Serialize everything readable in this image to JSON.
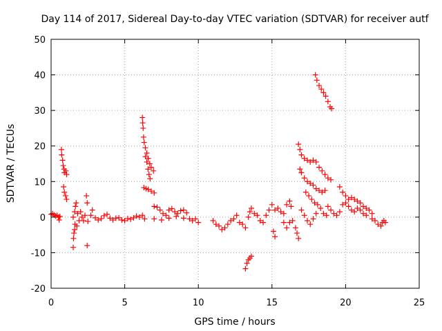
{
  "chart_data": {
    "type": "scatter",
    "title": "Day 114 of 2017, Sidereal Day-to-day VTEC variation (SDTVAR) for receiver autf",
    "xlabel": "GPS time / hours",
    "ylabel": "SDTVAR / TECUs",
    "xlim": [
      0,
      25
    ],
    "ylim": [
      -20,
      50
    ],
    "xticks": [
      0,
      5,
      10,
      15,
      20,
      25
    ],
    "yticks": [
      -20,
      -10,
      0,
      10,
      20,
      30,
      40,
      50
    ],
    "xtick_labels": [
      "0",
      "5",
      "10",
      "15",
      "20",
      "25"
    ],
    "ytick_labels": [
      "-20",
      "-10",
      "0",
      "10",
      "20",
      "30",
      "40",
      "50"
    ],
    "grid": true,
    "marker": "plus",
    "color": "#ff0000",
    "series": [
      {
        "name": "SDTVAR",
        "points": [
          [
            0.0,
            0.8
          ],
          [
            0.1,
            1.0
          ],
          [
            0.2,
            0.6
          ],
          [
            0.3,
            0.3
          ],
          [
            0.4,
            0.5
          ],
          [
            0.5,
            0.0
          ],
          [
            0.55,
            -0.8
          ],
          [
            0.6,
            0.2
          ],
          [
            0.7,
            19.0
          ],
          [
            0.72,
            17.5
          ],
          [
            0.78,
            16.0
          ],
          [
            0.82,
            14.5
          ],
          [
            0.88,
            13.5
          ],
          [
            0.9,
            12.5
          ],
          [
            1.0,
            13.0
          ],
          [
            1.05,
            12.0
          ],
          [
            0.85,
            8.5
          ],
          [
            0.9,
            7.0
          ],
          [
            0.98,
            6.0
          ],
          [
            1.05,
            5.0
          ],
          [
            1.5,
            -8.5
          ],
          [
            1.52,
            -6.0
          ],
          [
            1.55,
            -4.5
          ],
          [
            1.6,
            -3.5
          ],
          [
            1.62,
            -2.0
          ],
          [
            1.5,
            0.0
          ],
          [
            1.6,
            1.5
          ],
          [
            1.65,
            3.0
          ],
          [
            1.7,
            4.0
          ],
          [
            1.75,
            -2.5
          ],
          [
            1.8,
            1.0
          ],
          [
            1.9,
            -1.0
          ],
          [
            2.0,
            1.5
          ],
          [
            2.1,
            0.0
          ],
          [
            2.2,
            -1.0
          ],
          [
            2.3,
            0.5
          ],
          [
            2.4,
            6.0
          ],
          [
            2.45,
            4.0
          ],
          [
            2.5,
            -1.2
          ],
          [
            2.45,
            -8.0
          ],
          [
            2.7,
            0.5
          ],
          [
            2.8,
            2.0
          ],
          [
            3.0,
            -0.2
          ],
          [
            3.2,
            -0.8
          ],
          [
            3.4,
            -0.4
          ],
          [
            3.6,
            0.4
          ],
          [
            3.8,
            0.8
          ],
          [
            4.0,
            -0.3
          ],
          [
            4.2,
            -0.8
          ],
          [
            4.4,
            -0.3
          ],
          [
            4.6,
            -0.2
          ],
          [
            4.8,
            -0.8
          ],
          [
            5.0,
            -1.0
          ],
          [
            5.2,
            -0.4
          ],
          [
            5.4,
            -0.6
          ],
          [
            5.6,
            -0.2
          ],
          [
            5.8,
            0.3
          ],
          [
            6.0,
            0.0
          ],
          [
            6.2,
            0.5
          ],
          [
            6.35,
            -0.5
          ],
          [
            6.2,
            28.0
          ],
          [
            6.22,
            26.5
          ],
          [
            6.25,
            25.0
          ],
          [
            6.28,
            22.5
          ],
          [
            6.32,
            21.0
          ],
          [
            6.4,
            19.5
          ],
          [
            6.5,
            18.0
          ],
          [
            6.6,
            16.5
          ],
          [
            6.7,
            15.0
          ],
          [
            6.8,
            14.0
          ],
          [
            6.95,
            13.0
          ],
          [
            6.4,
            17.0
          ],
          [
            6.5,
            15.5
          ],
          [
            6.58,
            13.5
          ],
          [
            6.65,
            12.0
          ],
          [
            6.72,
            10.8
          ],
          [
            6.3,
            8.3
          ],
          [
            6.45,
            8.0
          ],
          [
            6.6,
            7.8
          ],
          [
            6.8,
            7.3
          ],
          [
            7.0,
            6.8
          ],
          [
            7.0,
            3.0
          ],
          [
            7.2,
            2.8
          ],
          [
            7.4,
            2.0
          ],
          [
            7.6,
            1.0
          ],
          [
            7.8,
            0.5
          ],
          [
            8.0,
            2.0
          ],
          [
            8.2,
            2.4
          ],
          [
            8.4,
            1.5
          ],
          [
            8.6,
            1.0
          ],
          [
            8.8,
            1.8
          ],
          [
            9.0,
            2.0
          ],
          [
            9.2,
            1.2
          ],
          [
            9.4,
            -0.5
          ],
          [
            9.6,
            -1.0
          ],
          [
            9.8,
            -0.5
          ],
          [
            10.0,
            -1.5
          ],
          [
            7.0,
            -0.5
          ],
          [
            7.5,
            -0.8
          ],
          [
            8.0,
            -0.3
          ],
          [
            8.5,
            0.2
          ],
          [
            9.0,
            -0.3
          ],
          [
            11.0,
            -1.0
          ],
          [
            11.2,
            -2.0
          ],
          [
            11.4,
            -2.5
          ],
          [
            11.6,
            -3.5
          ],
          [
            11.8,
            -3.0
          ],
          [
            12.0,
            -2.0
          ],
          [
            12.2,
            -1.0
          ],
          [
            12.4,
            -0.5
          ],
          [
            12.6,
            0.5
          ],
          [
            12.8,
            -1.5
          ],
          [
            13.0,
            -2.0
          ],
          [
            13.2,
            -3.0
          ],
          [
            13.4,
            0.0
          ],
          [
            13.5,
            1.5
          ],
          [
            13.6,
            2.5
          ],
          [
            13.8,
            1.0
          ],
          [
            14.0,
            0.5
          ],
          [
            14.2,
            -1.0
          ],
          [
            14.4,
            -1.5
          ],
          [
            14.6,
            0.5
          ],
          [
            14.8,
            2.0
          ],
          [
            15.0,
            3.5
          ],
          [
            15.2,
            2.0
          ],
          [
            15.1,
            -4.0
          ],
          [
            15.2,
            -5.5
          ],
          [
            13.2,
            -14.5
          ],
          [
            13.3,
            -13.0
          ],
          [
            13.4,
            -12.0
          ],
          [
            13.5,
            -11.5
          ],
          [
            13.6,
            -11.0
          ],
          [
            15.4,
            2.5
          ],
          [
            15.6,
            1.5
          ],
          [
            15.8,
            1.0
          ],
          [
            16.0,
            3.5
          ],
          [
            16.2,
            4.5
          ],
          [
            16.3,
            3.0
          ],
          [
            16.4,
            -1.0
          ],
          [
            16.6,
            -3.0
          ],
          [
            16.7,
            -4.5
          ],
          [
            16.8,
            -6.0
          ],
          [
            15.8,
            -1.5
          ],
          [
            16.0,
            -3.0
          ],
          [
            16.2,
            -1.5
          ],
          [
            16.8,
            20.5
          ],
          [
            16.9,
            19.0
          ],
          [
            17.0,
            17.5
          ],
          [
            17.2,
            16.5
          ],
          [
            17.4,
            16.0
          ],
          [
            17.6,
            15.5
          ],
          [
            17.8,
            16.0
          ],
          [
            18.0,
            15.5
          ],
          [
            18.2,
            14.0
          ],
          [
            18.4,
            13.0
          ],
          [
            18.6,
            12.0
          ],
          [
            18.8,
            11.0
          ],
          [
            19.0,
            10.5
          ],
          [
            16.9,
            13.5
          ],
          [
            17.0,
            12.5
          ],
          [
            17.2,
            11.0
          ],
          [
            17.4,
            10.0
          ],
          [
            17.6,
            9.5
          ],
          [
            17.8,
            9.0
          ],
          [
            18.0,
            8.0
          ],
          [
            18.2,
            7.5
          ],
          [
            18.4,
            7.0
          ],
          [
            18.6,
            7.5
          ],
          [
            17.3,
            7.0
          ],
          [
            17.5,
            6.0
          ],
          [
            17.7,
            5.0
          ],
          [
            17.9,
            4.0
          ],
          [
            18.1,
            3.5
          ],
          [
            18.3,
            2.5
          ],
          [
            18.5,
            1.0
          ],
          [
            18.7,
            0.5
          ],
          [
            17.0,
            2.0
          ],
          [
            17.2,
            0.5
          ],
          [
            17.4,
            -1.0
          ],
          [
            17.6,
            -2.0
          ],
          [
            17.8,
            -0.5
          ],
          [
            18.0,
            1.0
          ],
          [
            18.8,
            3.0
          ],
          [
            19.0,
            2.0
          ],
          [
            19.2,
            1.0
          ],
          [
            19.4,
            0.5
          ],
          [
            19.6,
            1.5
          ],
          [
            19.8,
            3.5
          ],
          [
            19.6,
            8.5
          ],
          [
            19.8,
            7.0
          ],
          [
            20.0,
            6.0
          ],
          [
            17.95,
            40.0
          ],
          [
            18.05,
            38.5
          ],
          [
            18.2,
            37.0
          ],
          [
            18.35,
            36.0
          ],
          [
            18.5,
            35.0
          ],
          [
            18.65,
            34.0
          ],
          [
            18.8,
            32.5
          ],
          [
            18.95,
            31.0
          ],
          [
            19.05,
            30.5
          ],
          [
            20.2,
            5.0
          ],
          [
            20.4,
            5.5
          ],
          [
            20.6,
            5.0
          ],
          [
            20.8,
            4.5
          ],
          [
            21.0,
            4.0
          ],
          [
            21.2,
            3.0
          ],
          [
            21.4,
            2.5
          ],
          [
            21.6,
            2.0
          ],
          [
            21.8,
            1.0
          ],
          [
            20.0,
            4.0
          ],
          [
            20.2,
            3.0
          ],
          [
            20.4,
            2.0
          ],
          [
            20.6,
            1.5
          ],
          [
            20.8,
            2.5
          ],
          [
            21.0,
            2.0
          ],
          [
            21.2,
            1.0
          ],
          [
            21.4,
            0.5
          ],
          [
            21.8,
            -0.5
          ],
          [
            22.0,
            -1.0
          ],
          [
            22.2,
            -2.0
          ],
          [
            22.4,
            -2.5
          ],
          [
            22.5,
            -1.5
          ],
          [
            22.6,
            -1.0
          ],
          [
            22.7,
            -1.5
          ]
        ]
      }
    ]
  }
}
